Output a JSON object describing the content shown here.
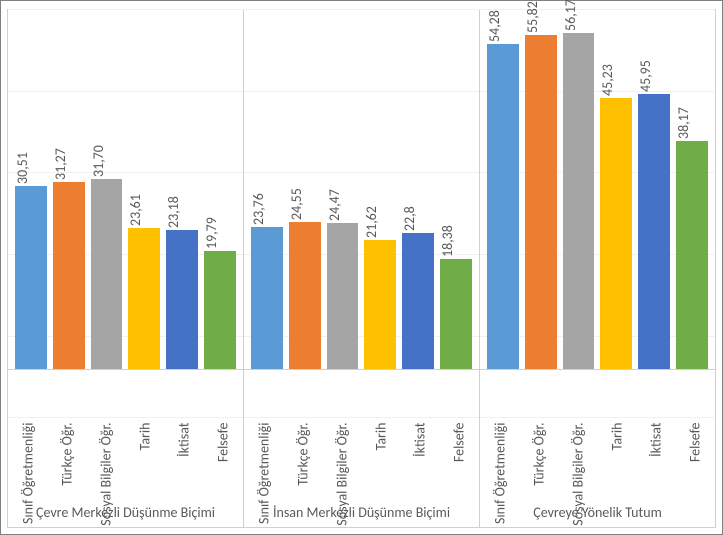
{
  "chart": {
    "type": "bar",
    "ymax": 60,
    "gridlines": [
      10,
      20,
      30,
      40,
      50,
      60
    ],
    "background_color": "#ffffff",
    "grid_color": "#f0f0f0",
    "border_color": "#d0d0d0",
    "label_color": "#595959",
    "label_fontsize": 14,
    "categories": [
      "Sınıf Öğretmenliği",
      "Türkçe Öğr.",
      "Sosyal Bilgiler Öğr.",
      "Tarih",
      "İktisat",
      "Felsefe"
    ],
    "series_colors": [
      "#5b9bd5",
      "#ed7d31",
      "#a5a5a5",
      "#ffc000",
      "#4472c4",
      "#70ad47"
    ],
    "groups": [
      {
        "label": "Çevre Merkezli Düşünme Biçimi",
        "values": [
          30.51,
          31.27,
          31.7,
          23.61,
          23.18,
          19.79
        ],
        "value_labels": [
          "30,51",
          "31,27",
          "31,70",
          "23,61",
          "23,18",
          "19,79"
        ]
      },
      {
        "label": "İnsan Merkezli Düşünme Biçimi",
        "values": [
          23.76,
          24.55,
          24.47,
          21.62,
          22.8,
          18.38
        ],
        "value_labels": [
          "23,76",
          "24,55",
          "24,47",
          "21,62",
          "22,8",
          "18,38"
        ]
      },
      {
        "label": "Çevreye Yönelik Tutum",
        "values": [
          54.28,
          55.82,
          56.17,
          45.23,
          45.95,
          38.17
        ],
        "value_labels": [
          "54,28",
          "55,82",
          "56,17",
          "45,23",
          "45,95",
          "38,17"
        ]
      }
    ]
  }
}
